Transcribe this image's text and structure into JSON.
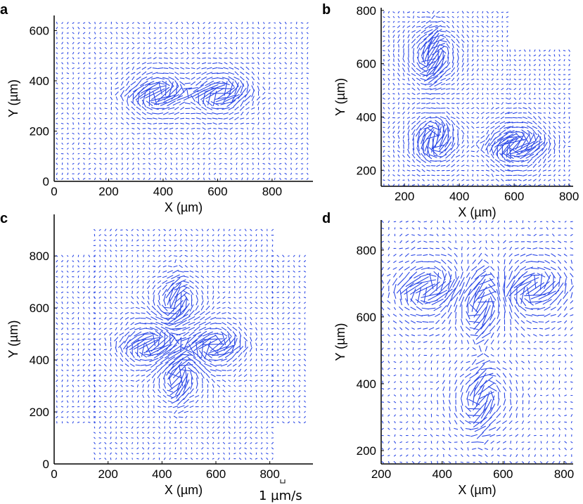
{
  "figure": {
    "arrow_color": "#2a47e6",
    "scale": {
      "text": "1 µm/s"
    }
  },
  "chart_data": [
    {
      "type": "quiver",
      "panel_label": "a",
      "xlabel": "X (µm)",
      "ylabel": "Y (µm)",
      "xlim": [
        0,
        950
      ],
      "ylim": [
        0,
        660
      ],
      "xticks": [
        0,
        200,
        400,
        600,
        800
      ],
      "yticks": [
        0,
        200,
        400,
        600
      ],
      "x_tick_labels": [
        "0",
        "200",
        "400",
        "600",
        "800"
      ],
      "y_tick_labels": [
        "0",
        "200",
        "400",
        "600"
      ],
      "grid": false,
      "grid_spacing": 20,
      "coverage": [
        [
          10,
          930,
          10,
          645
        ]
      ],
      "defects": [
        {
          "x": 380,
          "y": 350,
          "type": "horizontal"
        },
        {
          "x": 610,
          "y": 350,
          "type": "horizontal"
        }
      ]
    },
    {
      "type": "quiver",
      "panel_label": "b",
      "xlabel": "X (µm)",
      "ylabel": "Y (µm)",
      "xlim": [
        115,
        815
      ],
      "ylim": [
        140,
        810
      ],
      "xticks": [
        200,
        400,
        600,
        800
      ],
      "yticks": [
        200,
        400,
        600,
        800
      ],
      "x_tick_labels": [
        "200",
        "400",
        "600",
        "800"
      ],
      "y_tick_labels": [
        "200",
        "400",
        "600",
        "800"
      ],
      "grid": false,
      "grid_spacing": 18,
      "coverage": [
        [
          125,
          585,
          145,
          800
        ],
        [
          585,
          810,
          145,
          655
        ]
      ],
      "defects": [
        {
          "x": 305,
          "y": 630,
          "type": "vertical"
        },
        {
          "x": 310,
          "y": 315,
          "type": "diagonal"
        },
        {
          "x": 610,
          "y": 295,
          "type": "horizontal"
        }
      ]
    },
    {
      "type": "quiver",
      "panel_label": "c",
      "xlabel": "X (µm)",
      "ylabel": "Y (µm)",
      "xlim": [
        0,
        960
      ],
      "ylim": [
        0,
        960
      ],
      "xticks": [
        0,
        200,
        400,
        600,
        800
      ],
      "yticks": [
        0,
        200,
        400,
        600,
        800
      ],
      "x_tick_labels": [
        "0",
        "200",
        "400",
        "600",
        "800"
      ],
      "y_tick_labels": [
        "0",
        "200",
        "400",
        "600",
        "800"
      ],
      "grid": false,
      "grid_spacing": 20,
      "coverage": [
        [
          150,
          810,
          20,
          915
        ],
        [
          10,
          150,
          160,
          800
        ],
        [
          810,
          930,
          160,
          800
        ]
      ],
      "defects": [
        {
          "x": 455,
          "y": 620,
          "type": "vertical"
        },
        {
          "x": 590,
          "y": 455,
          "type": "horizontal"
        },
        {
          "x": 360,
          "y": 460,
          "type": "horizontal"
        },
        {
          "x": 465,
          "y": 340,
          "type": "vertical"
        }
      ]
    },
    {
      "type": "quiver",
      "panel_label": "d",
      "xlabel": "X (µm)",
      "ylabel": "Y (µm)",
      "xlim": [
        200,
        830
      ],
      "ylim": [
        160,
        890
      ],
      "xticks": [
        200,
        400,
        600,
        800
      ],
      "yticks": [
        200,
        400,
        600,
        800
      ],
      "x_tick_labels": [
        "200",
        "400",
        "600",
        "800"
      ],
      "y_tick_labels": [
        "200",
        "400",
        "600",
        "800"
      ],
      "grid": false,
      "grid_spacing": 20,
      "coverage": [
        [
          205,
          825,
          165,
          885
        ]
      ],
      "defects": [
        {
          "x": 360,
          "y": 685,
          "type": "horizontal"
        },
        {
          "x": 700,
          "y": 685,
          "type": "horizontal"
        },
        {
          "x": 530,
          "y": 640,
          "type": "vertical"
        },
        {
          "x": 530,
          "y": 355,
          "type": "vertical"
        }
      ]
    }
  ]
}
